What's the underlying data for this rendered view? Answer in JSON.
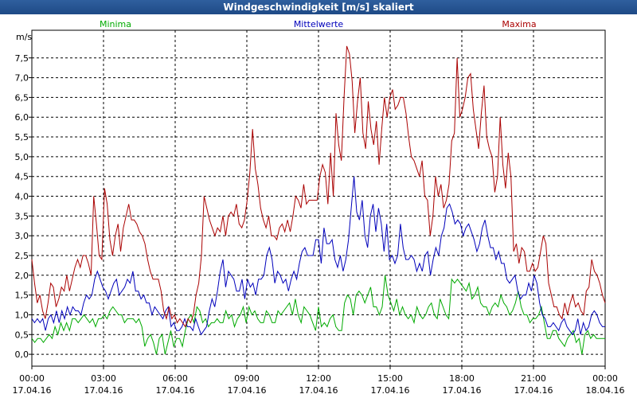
{
  "window": {
    "title": "Windgeschwindigkeit [m/s] skaliert"
  },
  "chart_data": {
    "type": "line",
    "title": "Windgeschwindigkeit [m/s] skaliert",
    "ylabel": "m/s",
    "ylim": [
      -0.3,
      8.2
    ],
    "y_ticks": [
      "0,0",
      "0,5",
      "1,0",
      "1,5",
      "2,0",
      "2,5",
      "3,0",
      "3,5",
      "4,0",
      "4,5",
      "5,0",
      "5,5",
      "6,0",
      "6,5",
      "7,0",
      "7,5"
    ],
    "x_tick_times": [
      "00:00",
      "03:00",
      "06:00",
      "09:00",
      "12:00",
      "15:00",
      "18:00",
      "21:00",
      "00:00"
    ],
    "x_tick_dates": [
      "17.04.16",
      "17.04.16",
      "17.04.16",
      "17.04.16",
      "17.04.16",
      "17.04.16",
      "17.04.16",
      "17.04.16",
      "18.04.16"
    ],
    "grid": true,
    "legend_position": "top",
    "series": [
      {
        "name": "Minima",
        "color": "#00aa00",
        "values": [
          0.4,
          0.3,
          0.4,
          0.4,
          0.3,
          0.4,
          0.5,
          0.4,
          0.7,
          0.5,
          0.8,
          0.6,
          0.8,
          0.6,
          0.9,
          0.9,
          0.8,
          0.9,
          1.0,
          0.9,
          0.8,
          0.9,
          0.7,
          0.9,
          0.9,
          1.0,
          0.9,
          1.1,
          1.2,
          1.1,
          1.0,
          1.0,
          0.8,
          0.9,
          0.9,
          0.9,
          0.8,
          0.9,
          0.7,
          0.2,
          0.4,
          0.5,
          0.3,
          0.0,
          0.4,
          0.5,
          0.0,
          0.3,
          0.6,
          0.2,
          0.4,
          0.4,
          0.2,
          0.6,
          0.9,
          1.0,
          0.8,
          1.2,
          1.1,
          0.8,
          0.9,
          0.7,
          0.8,
          0.8,
          0.9,
          0.8,
          0.8,
          1.1,
          0.9,
          1.0,
          0.7,
          0.9,
          1.0,
          1.2,
          0.8,
          1.2,
          1.0,
          1.1,
          0.9,
          0.8,
          0.8,
          1.1,
          1.0,
          0.8,
          0.8,
          1.1,
          1.0,
          1.1,
          1.2,
          1.3,
          1.0,
          1.4,
          1.0,
          0.8,
          1.2,
          1.1,
          1.0,
          0.8,
          0.6,
          1.2,
          0.7,
          0.8,
          0.7,
          0.9,
          1.0,
          0.7,
          0.6,
          0.6,
          1.3,
          1.5,
          1.4,
          1.0,
          1.5,
          1.6,
          1.5,
          1.3,
          1.5,
          1.7,
          1.2,
          1.2,
          1.0,
          1.2,
          2.0,
          1.5,
          1.3,
          1.1,
          1.4,
          1.0,
          1.2,
          1.0,
          0.9,
          1.0,
          0.8,
          1.2,
          1.0,
          0.9,
          1.0,
          1.2,
          1.3,
          1.0,
          0.9,
          1.4,
          1.2,
          1.0,
          0.9,
          1.9,
          1.8,
          1.9,
          1.8,
          1.7,
          1.6,
          1.8,
          1.4,
          1.5,
          1.7,
          1.3,
          1.2,
          1.2,
          1.0,
          1.2,
          1.3,
          1.2,
          1.5,
          1.3,
          1.2,
          1.0,
          1.1,
          1.3,
          1.6,
          1.2,
          1.0,
          1.0,
          0.8,
          0.9,
          0.9,
          1.0,
          1.2,
          0.8,
          0.4,
          0.4,
          0.6,
          0.6,
          0.4,
          0.3,
          0.2,
          0.4,
          0.5,
          0.6,
          0.3,
          0.4,
          0.0,
          0.5,
          0.6,
          0.4,
          0.5,
          0.4,
          0.4,
          0.4,
          0.4
        ]
      },
      {
        "name": "Mittelwerte",
        "color": "#0000bb",
        "values": [
          0.9,
          0.8,
          0.9,
          0.8,
          0.9,
          0.6,
          0.9,
          1.0,
          0.8,
          1.1,
          0.8,
          1.1,
          0.9,
          1.2,
          1.0,
          1.2,
          1.1,
          1.1,
          1.0,
          1.3,
          1.5,
          1.4,
          1.5,
          1.9,
          2.1,
          1.9,
          1.7,
          1.6,
          1.4,
          1.6,
          1.8,
          1.9,
          1.5,
          1.6,
          1.7,
          1.9,
          1.8,
          2.1,
          1.6,
          1.6,
          1.4,
          1.5,
          1.3,
          1.3,
          1.0,
          1.2,
          1.1,
          1.0,
          0.9,
          1.1,
          1.2,
          0.7,
          0.8,
          0.6,
          0.6,
          0.7,
          0.9,
          0.7,
          0.7,
          0.6,
          0.9,
          0.7,
          0.5,
          0.6,
          0.7,
          1.1,
          1.4,
          1.2,
          1.6,
          2.1,
          2.4,
          1.7,
          2.1,
          2.0,
          1.9,
          1.6,
          1.6,
          1.9,
          1.4,
          1.9,
          1.7,
          1.8,
          1.5,
          1.9,
          1.9,
          2.0,
          2.5,
          2.7,
          2.4,
          1.8,
          2.1,
          2.0,
          1.8,
          1.9,
          1.6,
          1.9,
          2.1,
          1.9,
          2.3,
          2.6,
          2.7,
          2.5,
          2.5,
          2.5,
          2.9,
          2.9,
          2.3,
          3.2,
          2.8,
          2.8,
          2.9,
          2.4,
          2.2,
          2.5,
          2.1,
          2.4,
          2.9,
          3.7,
          4.5,
          3.6,
          3.4,
          3.9,
          3.0,
          2.7,
          3.5,
          3.8,
          3.1,
          3.7,
          3.3,
          2.6,
          3.3,
          2.4,
          2.5,
          2.3,
          2.5,
          3.3,
          2.7,
          2.4,
          2.4,
          2.5,
          2.4,
          2.1,
          2.3,
          2.1,
          2.5,
          2.6,
          2.0,
          2.4,
          2.7,
          2.5,
          3.0,
          3.2,
          3.7,
          3.8,
          3.6,
          3.3,
          3.4,
          3.3,
          3.0,
          3.2,
          3.3,
          3.1,
          2.9,
          2.6,
          2.8,
          3.2,
          3.4,
          3.0,
          2.7,
          2.7,
          2.4,
          2.6,
          2.3,
          2.3,
          1.9,
          1.8,
          1.9,
          2.0,
          1.6,
          1.4,
          1.5,
          1.5,
          1.8,
          1.6,
          2.0,
          1.8,
          1.3,
          1.0,
          0.9,
          0.7,
          0.7,
          0.8,
          0.7,
          0.6,
          0.8,
          0.9,
          0.7,
          0.6,
          0.5,
          0.6,
          0.9,
          0.5,
          0.8,
          0.6,
          0.7,
          1.0,
          1.1,
          1.0,
          0.8,
          0.7,
          0.7
        ]
      },
      {
        "name": "Maxima",
        "color": "#aa0000",
        "values": [
          2.4,
          1.8,
          1.3,
          1.5,
          1.1,
          0.9,
          1.3,
          1.8,
          1.7,
          1.2,
          1.4,
          1.7,
          1.6,
          2.0,
          1.6,
          1.9,
          2.2,
          2.4,
          2.2,
          2.5,
          2.5,
          2.3,
          2.0,
          4.0,
          3.3,
          2.5,
          2.4,
          4.2,
          3.8,
          2.9,
          2.5,
          3.0,
          3.3,
          2.6,
          3.2,
          3.5,
          3.8,
          3.4,
          3.4,
          3.3,
          3.1,
          3.0,
          2.8,
          2.4,
          2.1,
          1.9,
          1.9,
          1.9,
          1.6,
          1.1,
          0.9,
          1.2,
          0.9,
          1.0,
          0.8,
          0.9,
          0.8,
          0.7,
          0.9,
          0.8,
          1.0,
          1.5,
          1.8,
          2.5,
          4.0,
          3.7,
          3.4,
          3.2,
          3.0,
          3.2,
          3.1,
          3.5,
          3.0,
          3.5,
          3.6,
          3.5,
          3.8,
          3.3,
          3.2,
          3.4,
          3.9,
          4.6,
          5.7,
          4.7,
          4.3,
          3.7,
          3.4,
          3.2,
          3.5,
          3.0,
          3.0,
          2.9,
          3.2,
          3.3,
          3.1,
          3.4,
          3.1,
          3.5,
          4.0,
          3.9,
          3.7,
          4.3,
          3.8,
          3.9,
          3.9,
          3.9,
          3.9,
          4.5,
          4.8,
          4.6,
          3.8,
          5.1,
          4.0,
          6.1,
          5.3,
          4.9,
          6.5,
          7.8,
          7.6,
          6.9,
          5.6,
          6.4,
          7.0,
          5.6,
          5.2,
          6.4,
          5.7,
          5.3,
          5.9,
          4.8,
          5.7,
          6.5,
          6.0,
          6.5,
          6.7,
          6.2,
          6.3,
          6.5,
          6.5,
          6.1,
          5.5,
          5.0,
          4.9,
          4.7,
          4.5,
          4.9,
          4.0,
          3.9,
          3.0,
          3.5,
          4.5,
          4.0,
          4.3,
          3.7,
          3.9,
          4.3,
          5.4,
          5.6,
          7.5,
          6.0,
          6.2,
          6.5,
          7.0,
          7.1,
          6.2,
          5.7,
          5.2,
          6.1,
          6.8,
          5.5,
          5.2,
          5.0,
          4.1,
          4.5,
          6.0,
          4.8,
          4.2,
          5.1,
          4.5,
          2.6,
          2.8,
          2.3,
          2.7,
          2.6,
          2.1,
          2.1,
          2.3,
          2.1,
          2.2,
          2.6,
          3.0,
          2.8,
          1.8,
          1.5,
          1.2,
          1.2,
          1.0,
          0.9,
          1.3,
          1.0,
          1.3,
          1.5,
          1.2,
          1.3,
          1.1,
          1.0,
          1.6,
          1.7,
          2.4,
          2.1,
          2.0,
          1.8,
          1.5,
          1.3
        ]
      }
    ]
  }
}
